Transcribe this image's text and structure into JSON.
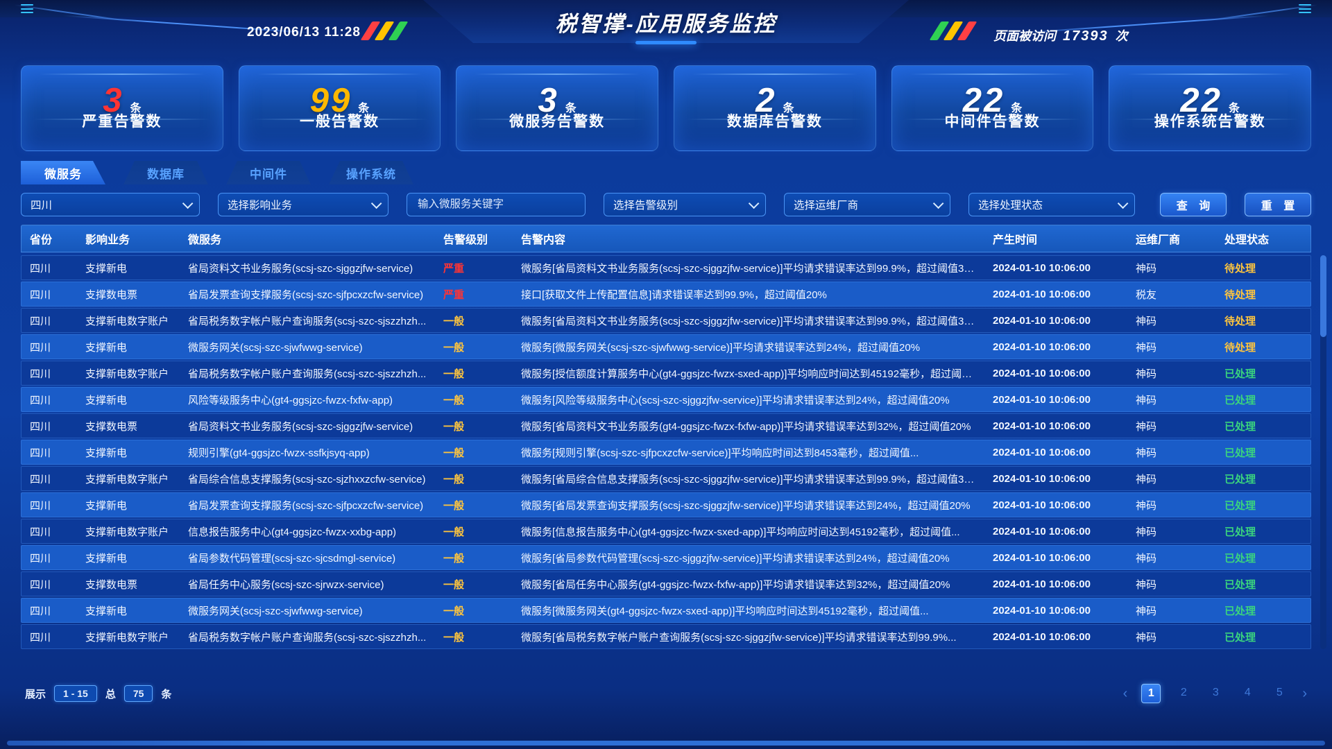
{
  "header": {
    "datetime": "2023/06/13 11:28",
    "title": "税智撑-应用服务监控",
    "visits_label": "页面被访问",
    "visits_count": "17393",
    "visits_unit": "次"
  },
  "stat_cards": [
    {
      "value": "3",
      "unit": "条",
      "label": "严重告警数",
      "color": "#ff3434"
    },
    {
      "value": "99",
      "unit": "条",
      "label": "一般告警数",
      "color": "#ffb800"
    },
    {
      "value": "3",
      "unit": "条",
      "label": "微服务告警数",
      "color": "#ffffff"
    },
    {
      "value": "2",
      "unit": "条",
      "label": "数据库告警数",
      "color": "#ffffff"
    },
    {
      "value": "22",
      "unit": "条",
      "label": "中间件告警数",
      "color": "#ffffff"
    },
    {
      "value": "22",
      "unit": "条",
      "label": "操作系统告警数",
      "color": "#ffffff"
    }
  ],
  "tabs": [
    {
      "label": "微服务",
      "active": true
    },
    {
      "label": "数据库",
      "active": false
    },
    {
      "label": "中间件",
      "active": false
    },
    {
      "label": "操作系统",
      "active": false
    }
  ],
  "filters": {
    "province_value": "四川",
    "business_placeholder": "选择影响业务",
    "keyword_placeholder": "输入微服务关键字",
    "level_placeholder": "选择告警级别",
    "vendor_placeholder": "选择运维厂商",
    "status_placeholder": "选择处理状态",
    "query_label": "查 询",
    "reset_label": "重 置"
  },
  "table": {
    "columns": [
      "省份",
      "影响业务",
      "微服务",
      "告警级别",
      "告警内容",
      "产生时间",
      "运维厂商",
      "处理状态"
    ],
    "severity_colors": {
      "严重": "#ff3434",
      "一般": "#ffc53d"
    },
    "status_colors": {
      "待处理": "#ffc53d",
      "已处理": "#3ad47e"
    },
    "rows": [
      {
        "province": "四川",
        "business": "支撑新电",
        "service": "省局资料文书业务服务(scsj-szc-sjggzjfw-service)",
        "level": "严重",
        "content": "微服务[省局资料文书业务服务(scsj-szc-sjggzjfw-service)]平均请求错误率达到99.9%，超过阈值30%",
        "time": "2024-01-10 10:06:00",
        "vendor": "神码",
        "status": "待处理"
      },
      {
        "province": "四川",
        "business": "支撑数电票",
        "service": "省局发票查询支撑服务(scsj-szc-sjfpcxzcfw-service)",
        "level": "严重",
        "content": "接口[获取文件上传配置信息]请求错误率达到99.9%，超过阈值20%",
        "time": "2024-01-10 10:06:00",
        "vendor": "税友",
        "status": "待处理"
      },
      {
        "province": "四川",
        "business": "支撑新电数字账户",
        "service": "省局税务数字帐户账户查询服务(scsj-szc-sjszzhzh...",
        "level": "一般",
        "content": "微服务[省局资料文书业务服务(scsj-szc-sjggzjfw-service)]平均请求错误率达到99.9%，超过阈值30%",
        "time": "2024-01-10 10:06:00",
        "vendor": "神码",
        "status": "待处理"
      },
      {
        "province": "四川",
        "business": "支撑新电",
        "service": "微服务网关(scsj-szc-sjwfwwg-service)",
        "level": "一般",
        "content": "微服务[微服务网关(scsj-szc-sjwfwwg-service)]平均请求错误率达到24%，超过阈值20%",
        "time": "2024-01-10 10:06:00",
        "vendor": "神码",
        "status": "待处理"
      },
      {
        "province": "四川",
        "business": "支撑新电数字账户",
        "service": "省局税务数字帐户账户查询服务(scsj-szc-sjszzhzh...",
        "level": "一般",
        "content": "微服务[授信额度计算服务中心(gt4-ggsjzc-fwzx-sxed-app)]平均响应时间达到45192毫秒，超过阈值...",
        "time": "2024-01-10 10:06:00",
        "vendor": "神码",
        "status": "已处理"
      },
      {
        "province": "四川",
        "business": "支撑新电",
        "service": "风险等级服务中心(gt4-ggsjzc-fwzx-fxfw-app)",
        "level": "一般",
        "content": "微服务[风险等级服务中心(scsj-szc-sjggzjfw-service)]平均请求错误率达到24%，超过阈值20%",
        "time": "2024-01-10 10:06:00",
        "vendor": "神码",
        "status": "已处理"
      },
      {
        "province": "四川",
        "business": "支撑数电票",
        "service": "省局资料文书业务服务(scsj-szc-sjggzjfw-service)",
        "level": "一般",
        "content": "微服务[省局资料文书业务服务(gt4-ggsjzc-fwzx-fxfw-app)]平均请求错误率达到32%，超过阈值20%",
        "time": "2024-01-10 10:06:00",
        "vendor": "神码",
        "status": "已处理"
      },
      {
        "province": "四川",
        "business": "支撑新电",
        "service": "规则引擎(gt4-ggsjzc-fwzx-ssfkjsyq-app)",
        "level": "一般",
        "content": "微服务[规则引擎(scsj-szc-sjfpcxzcfw-service)]平均响应时间达到8453毫秒，超过阈值...",
        "time": "2024-01-10 10:06:00",
        "vendor": "神码",
        "status": "已处理"
      },
      {
        "province": "四川",
        "business": "支撑新电数字账户",
        "service": "省局综合信息支撑服务(scsj-szc-sjzhxxzcfw-service)",
        "level": "一般",
        "content": "微服务[省局综合信息支撑服务(scsj-szc-sjggzjfw-service)]平均请求错误率达到99.9%，超过阈值30%",
        "time": "2024-01-10 10:06:00",
        "vendor": "神码",
        "status": "已处理"
      },
      {
        "province": "四川",
        "business": "支撑新电",
        "service": "省局发票查询支撑服务(scsj-szc-sjfpcxzcfw-service)",
        "level": "一般",
        "content": "微服务[省局发票查询支撑服务(scsj-szc-sjggzjfw-service)]平均请求错误率达到24%，超过阈值20%",
        "time": "2024-01-10 10:06:00",
        "vendor": "神码",
        "status": "已处理"
      },
      {
        "province": "四川",
        "business": "支撑新电数字账户",
        "service": "信息报告服务中心(gt4-ggsjzc-fwzx-xxbg-app)",
        "level": "一般",
        "content": "微服务[信息报告服务中心(gt4-ggsjzc-fwzx-sxed-app)]平均响应时间达到45192毫秒，超过阈值...",
        "time": "2024-01-10 10:06:00",
        "vendor": "神码",
        "status": "已处理"
      },
      {
        "province": "四川",
        "business": "支撑新电",
        "service": "省局参数代码管理(scsj-szc-sjcsdmgl-service)",
        "level": "一般",
        "content": "微服务[省局参数代码管理(scsj-szc-sjggzjfw-service)]平均请求错误率达到24%，超过阈值20%",
        "time": "2024-01-10 10:06:00",
        "vendor": "神码",
        "status": "已处理"
      },
      {
        "province": "四川",
        "business": "支撑数电票",
        "service": "省局任务中心服务(scsj-szc-sjrwzx-service)",
        "level": "一般",
        "content": "微服务[省局任务中心服务(gt4-ggsjzc-fwzx-fxfw-app)]平均请求错误率达到32%，超过阈值20%",
        "time": "2024-01-10 10:06:00",
        "vendor": "神码",
        "status": "已处理"
      },
      {
        "province": "四川",
        "business": "支撑新电",
        "service": "微服务网关(scsj-szc-sjwfwwg-service)",
        "level": "一般",
        "content": "微服务[微服务网关(gt4-ggsjzc-fwzx-sxed-app)]平均响应时间达到45192毫秒，超过阈值...",
        "time": "2024-01-10 10:06:00",
        "vendor": "神码",
        "status": "已处理"
      },
      {
        "province": "四川",
        "business": "支撑新电数字账户",
        "service": "省局税务数字帐户账户查询服务(scsj-szc-sjszzhzh...",
        "level": "一般",
        "content": "微服务[省局税务数字帐户账户查询服务(scsj-szc-sjggzjfw-service)]平均请求错误率达到99.9%...",
        "time": "2024-01-10 10:06:00",
        "vendor": "神码",
        "status": "已处理"
      }
    ]
  },
  "footer": {
    "show_label": "展示",
    "range": "1 - 15",
    "total_label": "总",
    "total": "75",
    "unit_label": "条",
    "pages": [
      "1",
      "2",
      "3",
      "4",
      "5"
    ],
    "active_page": "1",
    "prev_arrow": "‹",
    "next_arrow": "›"
  },
  "theme": {
    "accent": "#2f7df6",
    "stripe_colors_left": [
      "#ff4043",
      "#ffc400",
      "#2fd153"
    ],
    "stripe_colors_right": [
      "#2fd153",
      "#ffc400",
      "#ff4043"
    ]
  }
}
